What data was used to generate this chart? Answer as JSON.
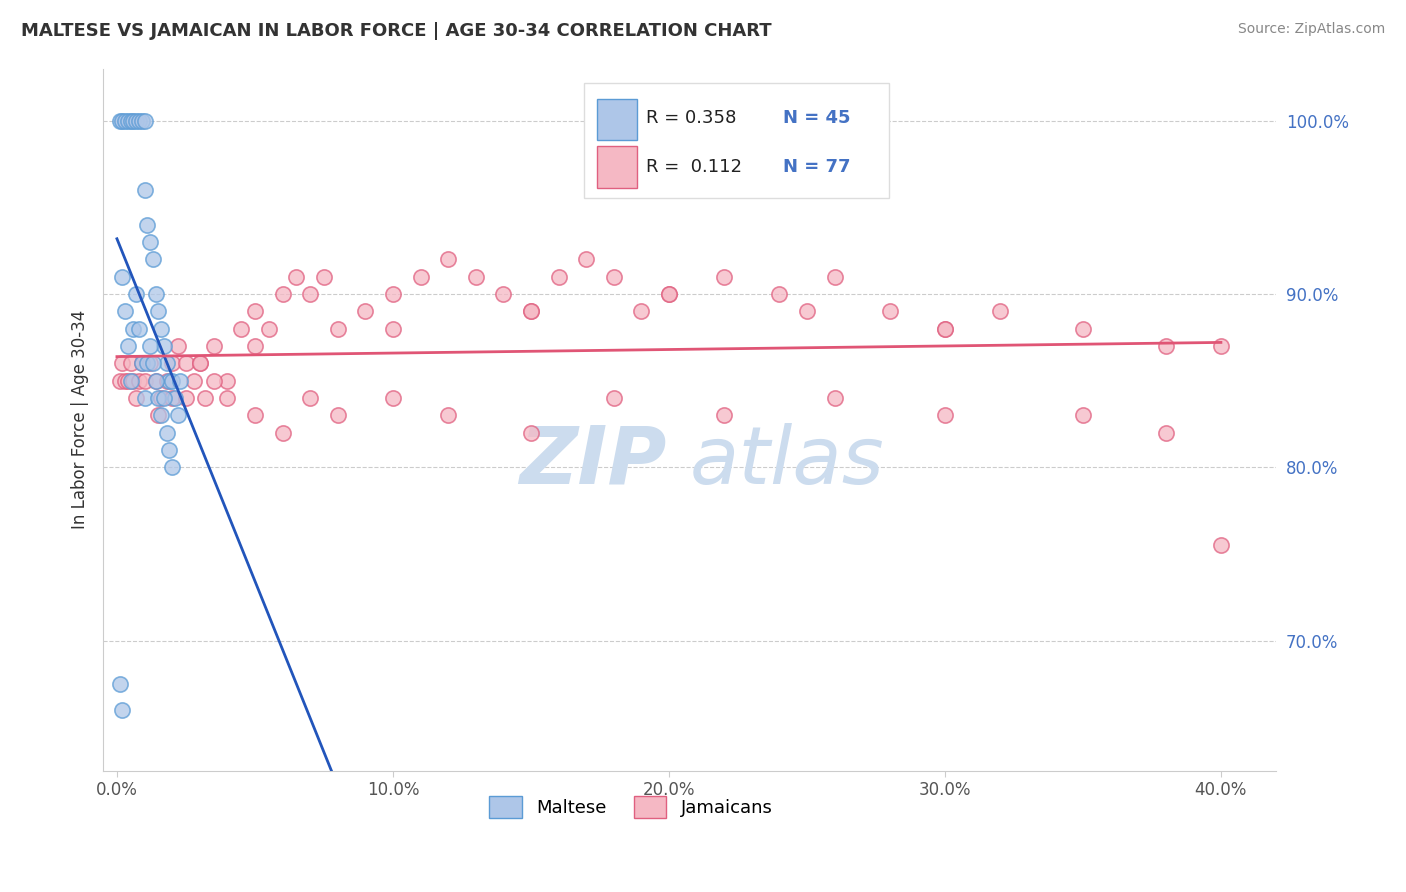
{
  "title": "MALTESE VS JAMAICAN IN LABOR FORCE | AGE 30-34 CORRELATION CHART",
  "source": "Source: ZipAtlas.com",
  "ylabel": "In Labor Force | Age 30-34",
  "xlim": [
    -0.005,
    0.42
  ],
  "ylim": [
    0.625,
    1.03
  ],
  "xticks": [
    0.0,
    0.1,
    0.2,
    0.3,
    0.4
  ],
  "xtick_labels": [
    "0.0%",
    "10.0%",
    "20.0%",
    "30.0%",
    "40.0%"
  ],
  "yticks": [
    0.7,
    0.8,
    0.9,
    1.0
  ],
  "ytick_labels": [
    "70.0%",
    "80.0%",
    "90.0%",
    "100.0%"
  ],
  "maltese_color": "#aec6e8",
  "jamaican_color": "#f5b8c4",
  "maltese_edge": "#5b9bd5",
  "jamaican_edge": "#e06080",
  "regression_blue": "#2255bb",
  "regression_pink": "#e05575",
  "R_maltese": 0.358,
  "N_maltese": 45,
  "R_jamaican": 0.112,
  "N_jamaican": 77,
  "maltese_x": [
    0.001,
    0.002,
    0.003,
    0.004,
    0.005,
    0.006,
    0.007,
    0.008,
    0.009,
    0.01,
    0.01,
    0.011,
    0.012,
    0.013,
    0.014,
    0.015,
    0.016,
    0.017,
    0.018,
    0.019,
    0.02,
    0.021,
    0.022,
    0.023,
    0.002,
    0.003,
    0.004,
    0.005,
    0.006,
    0.007,
    0.008,
    0.009,
    0.01,
    0.011,
    0.012,
    0.013,
    0.014,
    0.015,
    0.016,
    0.017,
    0.018,
    0.019,
    0.02,
    0.001,
    0.002
  ],
  "maltese_y": [
    1.0,
    1.0,
    1.0,
    1.0,
    1.0,
    1.0,
    1.0,
    1.0,
    1.0,
    1.0,
    0.96,
    0.94,
    0.93,
    0.92,
    0.9,
    0.89,
    0.88,
    0.87,
    0.86,
    0.85,
    0.85,
    0.84,
    0.83,
    0.85,
    0.91,
    0.89,
    0.87,
    0.85,
    0.88,
    0.9,
    0.88,
    0.86,
    0.84,
    0.86,
    0.87,
    0.86,
    0.85,
    0.84,
    0.83,
    0.84,
    0.82,
    0.81,
    0.8,
    0.675,
    0.66
  ],
  "jamaican_x": [
    0.001,
    0.002,
    0.003,
    0.004,
    0.005,
    0.006,
    0.007,
    0.008,
    0.009,
    0.01,
    0.012,
    0.014,
    0.016,
    0.018,
    0.02,
    0.022,
    0.025,
    0.028,
    0.03,
    0.032,
    0.035,
    0.04,
    0.045,
    0.05,
    0.055,
    0.06,
    0.065,
    0.07,
    0.075,
    0.08,
    0.09,
    0.1,
    0.11,
    0.12,
    0.13,
    0.14,
    0.15,
    0.16,
    0.17,
    0.18,
    0.19,
    0.2,
    0.22,
    0.24,
    0.26,
    0.28,
    0.3,
    0.32,
    0.35,
    0.38,
    0.4,
    0.015,
    0.02,
    0.025,
    0.03,
    0.035,
    0.04,
    0.05,
    0.06,
    0.07,
    0.08,
    0.1,
    0.12,
    0.15,
    0.18,
    0.22,
    0.26,
    0.3,
    0.35,
    0.38,
    0.4,
    0.05,
    0.1,
    0.15,
    0.2,
    0.25,
    0.3
  ],
  "jamaican_y": [
    0.85,
    0.86,
    0.85,
    0.85,
    0.86,
    0.85,
    0.84,
    0.85,
    0.86,
    0.85,
    0.86,
    0.85,
    0.84,
    0.85,
    0.86,
    0.87,
    0.86,
    0.85,
    0.86,
    0.84,
    0.87,
    0.85,
    0.88,
    0.89,
    0.88,
    0.9,
    0.91,
    0.9,
    0.91,
    0.88,
    0.89,
    0.9,
    0.91,
    0.92,
    0.91,
    0.9,
    0.89,
    0.91,
    0.92,
    0.91,
    0.89,
    0.9,
    0.91,
    0.9,
    0.91,
    0.89,
    0.88,
    0.89,
    0.88,
    0.87,
    0.87,
    0.83,
    0.84,
    0.84,
    0.86,
    0.85,
    0.84,
    0.83,
    0.82,
    0.84,
    0.83,
    0.84,
    0.83,
    0.82,
    0.84,
    0.83,
    0.84,
    0.83,
    0.83,
    0.82,
    0.755,
    0.87,
    0.88,
    0.89,
    0.9,
    0.89,
    0.88
  ],
  "watermark_top": "ZIP",
  "watermark_bot": "atlas",
  "watermark_color": "#ccdcee",
  "legend_maltese_label": "Maltese",
  "legend_jamaican_label": "Jamaicans",
  "bg_color": "#ffffff",
  "grid_color": "#cccccc",
  "ytick_color": "#4472c4",
  "xtick_color": "#555555"
}
